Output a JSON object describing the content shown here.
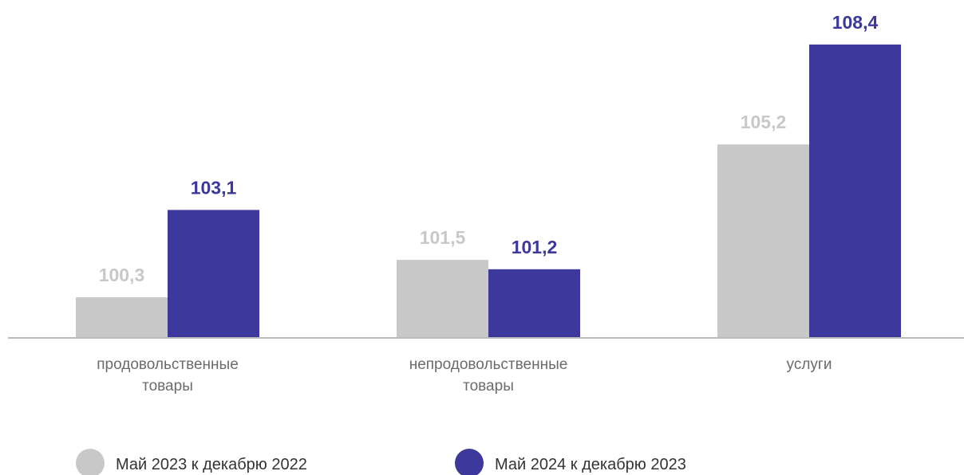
{
  "chart_data": {
    "type": "bar",
    "categories": [
      [
        "продовольственные",
        "товары"
      ],
      [
        "непродовольственные",
        "товары"
      ],
      [
        "услуги"
      ]
    ],
    "series": [
      {
        "name": "Май 2023 к декабрю 2022",
        "values": [
          100.3,
          101.5,
          105.2
        ],
        "labels": [
          "100,3",
          "101,5",
          "105,2"
        ],
        "color": "#c8c8c8"
      },
      {
        "name": "Май 2024 к декабрю 2023",
        "values": [
          103.1,
          101.2,
          108.4
        ],
        "labels": [
          "103,1",
          "101,2",
          "108,4"
        ],
        "color": "#3c389c"
      }
    ],
    "ylim": [
      99,
      108.6
    ],
    "grid": false,
    "legend_position": "bottom"
  },
  "colors": {
    "axis": "#bbbbbb",
    "category_text": "#6b6b6b",
    "legend_text": "#333333"
  }
}
